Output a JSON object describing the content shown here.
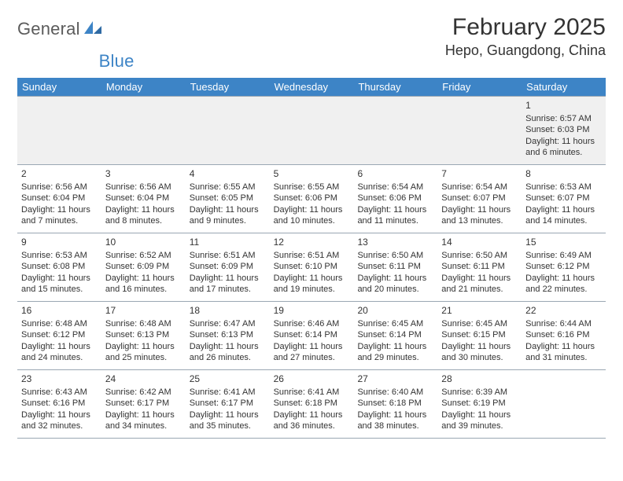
{
  "logo": {
    "word1": "General",
    "word2": "Blue"
  },
  "title": "February 2025",
  "location": "Hepo, Guangdong, China",
  "colors": {
    "header_bg": "#3d84c6",
    "header_text": "#ffffff",
    "border": "#9aa7b3",
    "firstrow_bg": "#f0f0f0",
    "text": "#333333",
    "logo_gray": "#5b5b5b",
    "logo_blue": "#3d84c6"
  },
  "typography": {
    "title_fontsize": 30,
    "location_fontsize": 18,
    "weekday_fontsize": 13,
    "daynum_fontsize": 12,
    "detail_fontsize": 11,
    "logo_fontsize": 22
  },
  "weekdays": [
    "Sunday",
    "Monday",
    "Tuesday",
    "Wednesday",
    "Thursday",
    "Friday",
    "Saturday"
  ],
  "weeks": [
    [
      null,
      null,
      null,
      null,
      null,
      null,
      {
        "n": "1",
        "sunrise": "Sunrise: 6:57 AM",
        "sunset": "Sunset: 6:03 PM",
        "daylight": "Daylight: 11 hours and 6 minutes."
      }
    ],
    [
      {
        "n": "2",
        "sunrise": "Sunrise: 6:56 AM",
        "sunset": "Sunset: 6:04 PM",
        "daylight": "Daylight: 11 hours and 7 minutes."
      },
      {
        "n": "3",
        "sunrise": "Sunrise: 6:56 AM",
        "sunset": "Sunset: 6:04 PM",
        "daylight": "Daylight: 11 hours and 8 minutes."
      },
      {
        "n": "4",
        "sunrise": "Sunrise: 6:55 AM",
        "sunset": "Sunset: 6:05 PM",
        "daylight": "Daylight: 11 hours and 9 minutes."
      },
      {
        "n": "5",
        "sunrise": "Sunrise: 6:55 AM",
        "sunset": "Sunset: 6:06 PM",
        "daylight": "Daylight: 11 hours and 10 minutes."
      },
      {
        "n": "6",
        "sunrise": "Sunrise: 6:54 AM",
        "sunset": "Sunset: 6:06 PM",
        "daylight": "Daylight: 11 hours and 11 minutes."
      },
      {
        "n": "7",
        "sunrise": "Sunrise: 6:54 AM",
        "sunset": "Sunset: 6:07 PM",
        "daylight": "Daylight: 11 hours and 13 minutes."
      },
      {
        "n": "8",
        "sunrise": "Sunrise: 6:53 AM",
        "sunset": "Sunset: 6:07 PM",
        "daylight": "Daylight: 11 hours and 14 minutes."
      }
    ],
    [
      {
        "n": "9",
        "sunrise": "Sunrise: 6:53 AM",
        "sunset": "Sunset: 6:08 PM",
        "daylight": "Daylight: 11 hours and 15 minutes."
      },
      {
        "n": "10",
        "sunrise": "Sunrise: 6:52 AM",
        "sunset": "Sunset: 6:09 PM",
        "daylight": "Daylight: 11 hours and 16 minutes."
      },
      {
        "n": "11",
        "sunrise": "Sunrise: 6:51 AM",
        "sunset": "Sunset: 6:09 PM",
        "daylight": "Daylight: 11 hours and 17 minutes."
      },
      {
        "n": "12",
        "sunrise": "Sunrise: 6:51 AM",
        "sunset": "Sunset: 6:10 PM",
        "daylight": "Daylight: 11 hours and 19 minutes."
      },
      {
        "n": "13",
        "sunrise": "Sunrise: 6:50 AM",
        "sunset": "Sunset: 6:11 PM",
        "daylight": "Daylight: 11 hours and 20 minutes."
      },
      {
        "n": "14",
        "sunrise": "Sunrise: 6:50 AM",
        "sunset": "Sunset: 6:11 PM",
        "daylight": "Daylight: 11 hours and 21 minutes."
      },
      {
        "n": "15",
        "sunrise": "Sunrise: 6:49 AM",
        "sunset": "Sunset: 6:12 PM",
        "daylight": "Daylight: 11 hours and 22 minutes."
      }
    ],
    [
      {
        "n": "16",
        "sunrise": "Sunrise: 6:48 AM",
        "sunset": "Sunset: 6:12 PM",
        "daylight": "Daylight: 11 hours and 24 minutes."
      },
      {
        "n": "17",
        "sunrise": "Sunrise: 6:48 AM",
        "sunset": "Sunset: 6:13 PM",
        "daylight": "Daylight: 11 hours and 25 minutes."
      },
      {
        "n": "18",
        "sunrise": "Sunrise: 6:47 AM",
        "sunset": "Sunset: 6:13 PM",
        "daylight": "Daylight: 11 hours and 26 minutes."
      },
      {
        "n": "19",
        "sunrise": "Sunrise: 6:46 AM",
        "sunset": "Sunset: 6:14 PM",
        "daylight": "Daylight: 11 hours and 27 minutes."
      },
      {
        "n": "20",
        "sunrise": "Sunrise: 6:45 AM",
        "sunset": "Sunset: 6:14 PM",
        "daylight": "Daylight: 11 hours and 29 minutes."
      },
      {
        "n": "21",
        "sunrise": "Sunrise: 6:45 AM",
        "sunset": "Sunset: 6:15 PM",
        "daylight": "Daylight: 11 hours and 30 minutes."
      },
      {
        "n": "22",
        "sunrise": "Sunrise: 6:44 AM",
        "sunset": "Sunset: 6:16 PM",
        "daylight": "Daylight: 11 hours and 31 minutes."
      }
    ],
    [
      {
        "n": "23",
        "sunrise": "Sunrise: 6:43 AM",
        "sunset": "Sunset: 6:16 PM",
        "daylight": "Daylight: 11 hours and 32 minutes."
      },
      {
        "n": "24",
        "sunrise": "Sunrise: 6:42 AM",
        "sunset": "Sunset: 6:17 PM",
        "daylight": "Daylight: 11 hours and 34 minutes."
      },
      {
        "n": "25",
        "sunrise": "Sunrise: 6:41 AM",
        "sunset": "Sunset: 6:17 PM",
        "daylight": "Daylight: 11 hours and 35 minutes."
      },
      {
        "n": "26",
        "sunrise": "Sunrise: 6:41 AM",
        "sunset": "Sunset: 6:18 PM",
        "daylight": "Daylight: 11 hours and 36 minutes."
      },
      {
        "n": "27",
        "sunrise": "Sunrise: 6:40 AM",
        "sunset": "Sunset: 6:18 PM",
        "daylight": "Daylight: 11 hours and 38 minutes."
      },
      {
        "n": "28",
        "sunrise": "Sunrise: 6:39 AM",
        "sunset": "Sunset: 6:19 PM",
        "daylight": "Daylight: 11 hours and 39 minutes."
      },
      null
    ]
  ]
}
